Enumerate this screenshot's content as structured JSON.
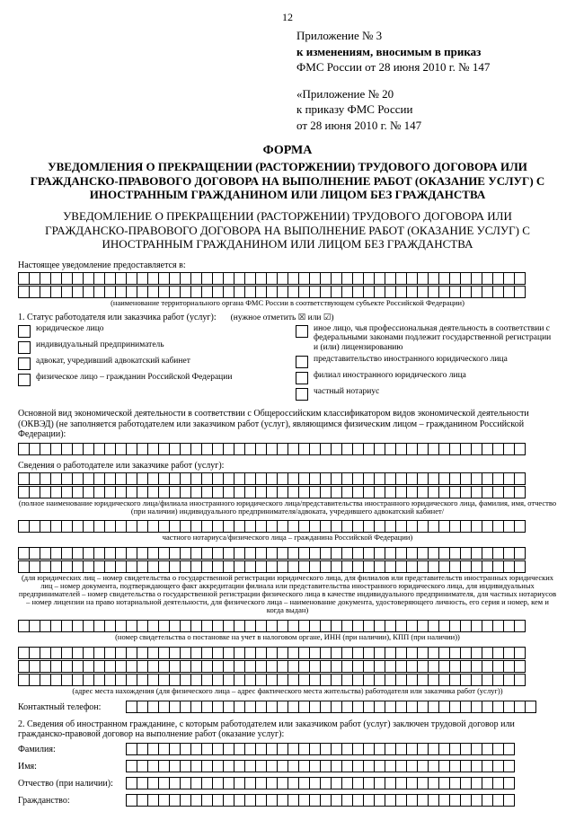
{
  "page_number": "12",
  "appendix1": {
    "line1": "Приложение № 3",
    "line2": "к изменениям, вносимым в приказ",
    "line3": "ФМС России от 28 июня 2010 г. № 147"
  },
  "appendix2": {
    "line1": "«Приложение № 20",
    "line2": "к приказу ФМС России",
    "line3": "от 28 июня 2010 г. № 147"
  },
  "form_word": "ФОРМА",
  "title1": "УВЕДОМЛЕНИЯ О ПРЕКРАЩЕНИИ (РАСТОРЖЕНИИ) ТРУДОВОГО ДОГОВОРА ИЛИ ГРАЖДАНСКО-ПРАВОВОГО ДОГОВОРА НА ВЫПОЛНЕНИЕ РАБОТ (ОКАЗАНИЕ УСЛУГ) С ИНОСТРАННЫМ ГРАЖДАНИНОМ ИЛИ ЛИЦОМ БЕЗ ГРАЖДАНСТВА",
  "title2": "УВЕДОМЛЕНИЕ О ПРЕКРАЩЕНИИ (РАСТОРЖЕНИИ) ТРУДОВОГО ДОГОВОРА ИЛИ ГРАЖДАНСКО-ПРАВОВОГО ДОГОВОРА НА ВЫПОЛНЕНИЕ РАБОТ (ОКАЗАНИЕ УСЛУГ) С ИНОСТРАННЫМ ГРАЖДАНИНОМ ИЛИ ЛИЦОМ БЕЗ ГРАЖДАНСТВА",
  "present_label": "Настоящее уведомление предоставляется в:",
  "cap_fms": "(наименование территориального органа ФМС России в соответствующем субъекте Российской Федерации)",
  "status_label": "1. Статус работодателя или заказчика работ (услуг):",
  "status_hint": "(нужное отметить ☒ или ☑)",
  "checks_left": [
    "юридическое лицо",
    "индивидуальный предприниматель",
    "адвокат, учредивший адвокатский кабинет",
    "физическое лицо – гражданин Российской Федерации"
  ],
  "checks_right": [
    "иное лицо, чья профессиональная деятельность в соответствии с федеральными законами подлежит государственной регистрации и (или) лицензированию",
    "представительство иностранного юридического лица",
    "филиал иностранного юридического лица",
    "частный нотариус"
  ],
  "okved_label": "Основной вид экономической деятельности в соответствии с Общероссийским классификатором видов экономической деятельности (ОКВЭД) (не заполняется работодателем или заказчиком работ (услуг), являющимся физическим лицом – гражданином Российской Федерации):",
  "sved_label": "Сведения о работодателе или заказчике работ (услуг):",
  "cap_name": "(полное наименование юридического лица/филиала иностранного юридического лица/представительства иностранного юридического лица, фамилия, имя, отчество (при наличии) индивидуального предпринимателя/адвоката, учредившего адвокатский кабинет/",
  "cap_notary": "частного нотариуса/физического лица – гражданина Российской Федерации)",
  "cap_reg": "(для юридических лиц – номер свидетельства о государственной регистрации юридического лица, для филиалов или представительств иностранных юридических лиц – номер документа, подтверждающего факт аккредитации филиала или представительства иностранного юридического лица, для индивидуальных предпринимателей – номер свидетельства о государственной регистрации физического лица в качестве индивидуального предпринимателя, для частных нотариусов – номер лицензии на право нотариальной деятельности, для физического лица – наименование документа, удостоверяющего личность, его серия и номер, кем и когда выдан)",
  "cap_inn": "(номер свидетельства о постановке на учет в налоговом органе, ИНН (при наличии), КПП (при наличии))",
  "cap_addr": "(адрес места нахождения (для физического лица – адрес фактического места жительства) работодателя или заказчика работ (услуг))",
  "phone_label": "Контактный телефон:",
  "section2": "2. Сведения об иностранном гражданине, с которым работодателем или заказчиком работ (услуг) заключен трудовой договор или гражданско-правовой договор на выполнение работ (оказание услуг):",
  "f_surname": "Фамилия:",
  "f_name": "Имя:",
  "f_patronymic": "Отчество (при наличии):",
  "f_citizenship": "Гражданство:",
  "cell_counts": {
    "full_row": 47,
    "short_row": 36,
    "phone_row": 38
  }
}
